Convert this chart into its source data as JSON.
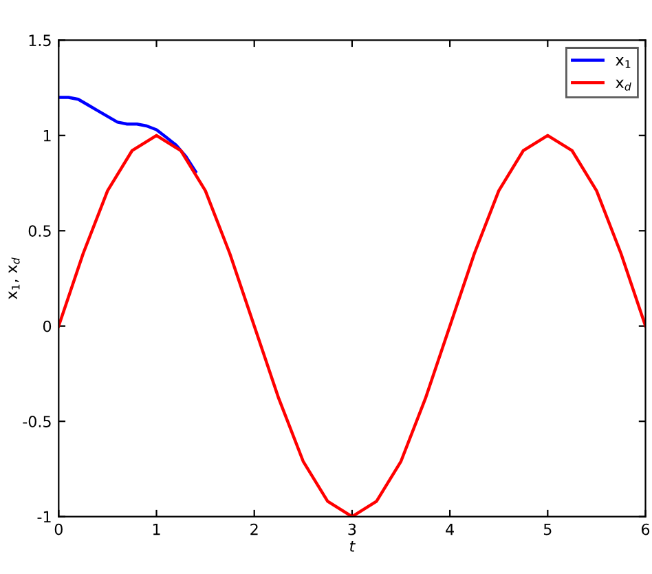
{
  "chart_data": {
    "type": "line",
    "xlabel": "t",
    "ylabel": "x$_{1}$, x$_{d}$",
    "xlim": [
      0,
      6
    ],
    "ylim": [
      -1,
      1.5
    ],
    "xticks": [
      0,
      1,
      2,
      3,
      4,
      5,
      6
    ],
    "yticks": [
      -1,
      -0.5,
      0,
      0.5,
      1,
      1.5
    ],
    "grid": false,
    "legend": "top right",
    "line_style": "solid",
    "marker": "none",
    "series": [
      {
        "name": "x$_{1}$",
        "color": "#0000ff",
        "x": [
          0,
          0.1,
          0.2,
          0.3,
          0.4,
          0.5,
          0.6,
          0.7,
          0.8,
          0.9,
          1.0,
          1.1,
          1.2,
          1.3,
          1.4
        ],
        "values": [
          1.2,
          1.2,
          1.19,
          1.16,
          1.13,
          1.1,
          1.07,
          1.06,
          1.06,
          1.05,
          1.03,
          0.99,
          0.95,
          0.89,
          0.81
        ]
      },
      {
        "name": "x$_{d}$",
        "color": "#ff0000",
        "x": [
          0,
          0.25,
          0.5,
          0.75,
          1,
          1.25,
          1.5,
          1.75,
          2,
          2.25,
          2.5,
          2.75,
          3,
          3.25,
          3.5,
          3.75,
          4,
          4.25,
          4.5,
          4.75,
          5,
          5.25,
          5.5,
          5.75,
          6
        ],
        "values": [
          0,
          0.38,
          0.71,
          0.92,
          1,
          0.92,
          0.71,
          0.38,
          0,
          -0.38,
          -0.71,
          -0.92,
          -1,
          -0.92,
          -0.71,
          -0.38,
          0,
          0.38,
          0.71,
          0.92,
          1,
          0.92,
          0.71,
          0.38,
          0
        ]
      }
    ]
  }
}
